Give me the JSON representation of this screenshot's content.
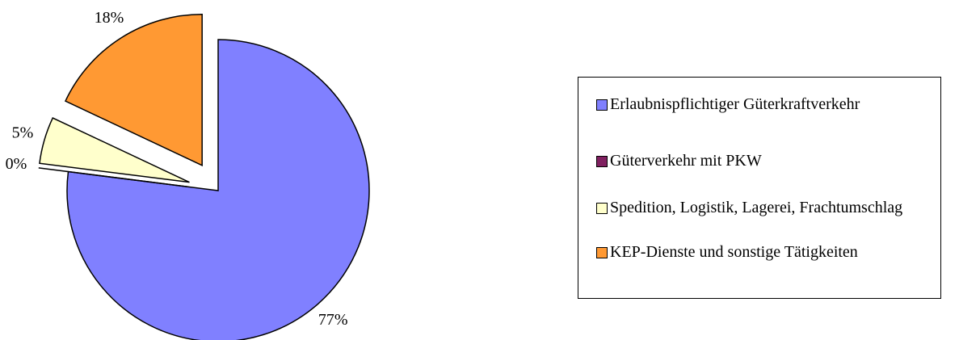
{
  "chart_data": {
    "type": "pie",
    "categories": [
      "Erlaubnispflichtiger Güterkraftverkehr",
      "Güterverkehr mit PKW",
      "Spedition, Logistik, Lagerei, Frachtumschlag",
      "KEP-Dienste und sonstige Tätigkeiten"
    ],
    "values": [
      77,
      0,
      5,
      18
    ],
    "value_labels": [
      "77%",
      "0%",
      "5%",
      "18%"
    ],
    "colors": [
      "#8080ff",
      "#802060",
      "#ffffcc",
      "#ff9933"
    ],
    "legend": "right"
  }
}
